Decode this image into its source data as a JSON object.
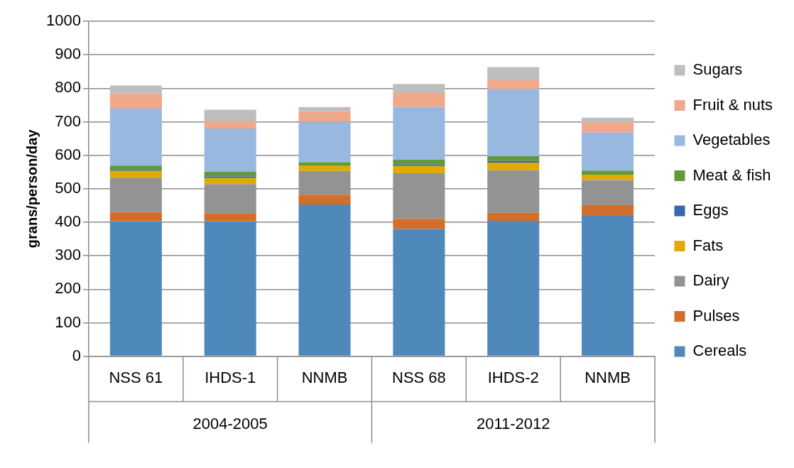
{
  "chart_data": {
    "type": "bar",
    "stacked": true,
    "ylabel": "grans/person/day",
    "categories": [
      "NSS 61",
      "IHDS-1",
      "NNMB",
      "NSS 68",
      "IHDS-2",
      "NNMB"
    ],
    "annotations": [
      "2004-2005",
      "2011-2012"
    ],
    "series": [
      {
        "name": "Cereals",
        "color": "#4f88bb",
        "values": [
          403,
          403,
          453,
          380,
          404,
          419
        ]
      },
      {
        "name": "Pulses",
        "color": "#d26e2a",
        "values": [
          27,
          24,
          29,
          30,
          24,
          32
        ]
      },
      {
        "name": "Dairy",
        "color": "#939393",
        "values": [
          103,
          87,
          71,
          136,
          127,
          75
        ]
      },
      {
        "name": "Fats",
        "color": "#e2aa00",
        "values": [
          19,
          18,
          15,
          22,
          23,
          16
        ]
      },
      {
        "name": "Eggs",
        "color": "#3a65b0",
        "values": [
          2,
          4,
          null,
          4,
          5,
          null
        ]
      },
      {
        "name": "Meat & fish",
        "color": "#61993b",
        "values": [
          15,
          15,
          11,
          15,
          14,
          12
        ]
      },
      {
        "name": "Vegetables",
        "color": "#98b8df",
        "values": [
          170,
          129,
          121,
          157,
          200,
          114
        ]
      },
      {
        "name": "Fruit & nuts",
        "color": "#f0a88a",
        "values": [
          45,
          21,
          31,
          42,
          27,
          31
        ]
      },
      {
        "name": "Sugars",
        "color": "#bebebe",
        "values": [
          24,
          35,
          13,
          27,
          39,
          13
        ]
      }
    ],
    "ylim": [
      0,
      1000
    ],
    "yticks": [
      0,
      100,
      200,
      300,
      400,
      500,
      600,
      700,
      800,
      900,
      1000
    ],
    "grid": "y",
    "legend": "right"
  }
}
